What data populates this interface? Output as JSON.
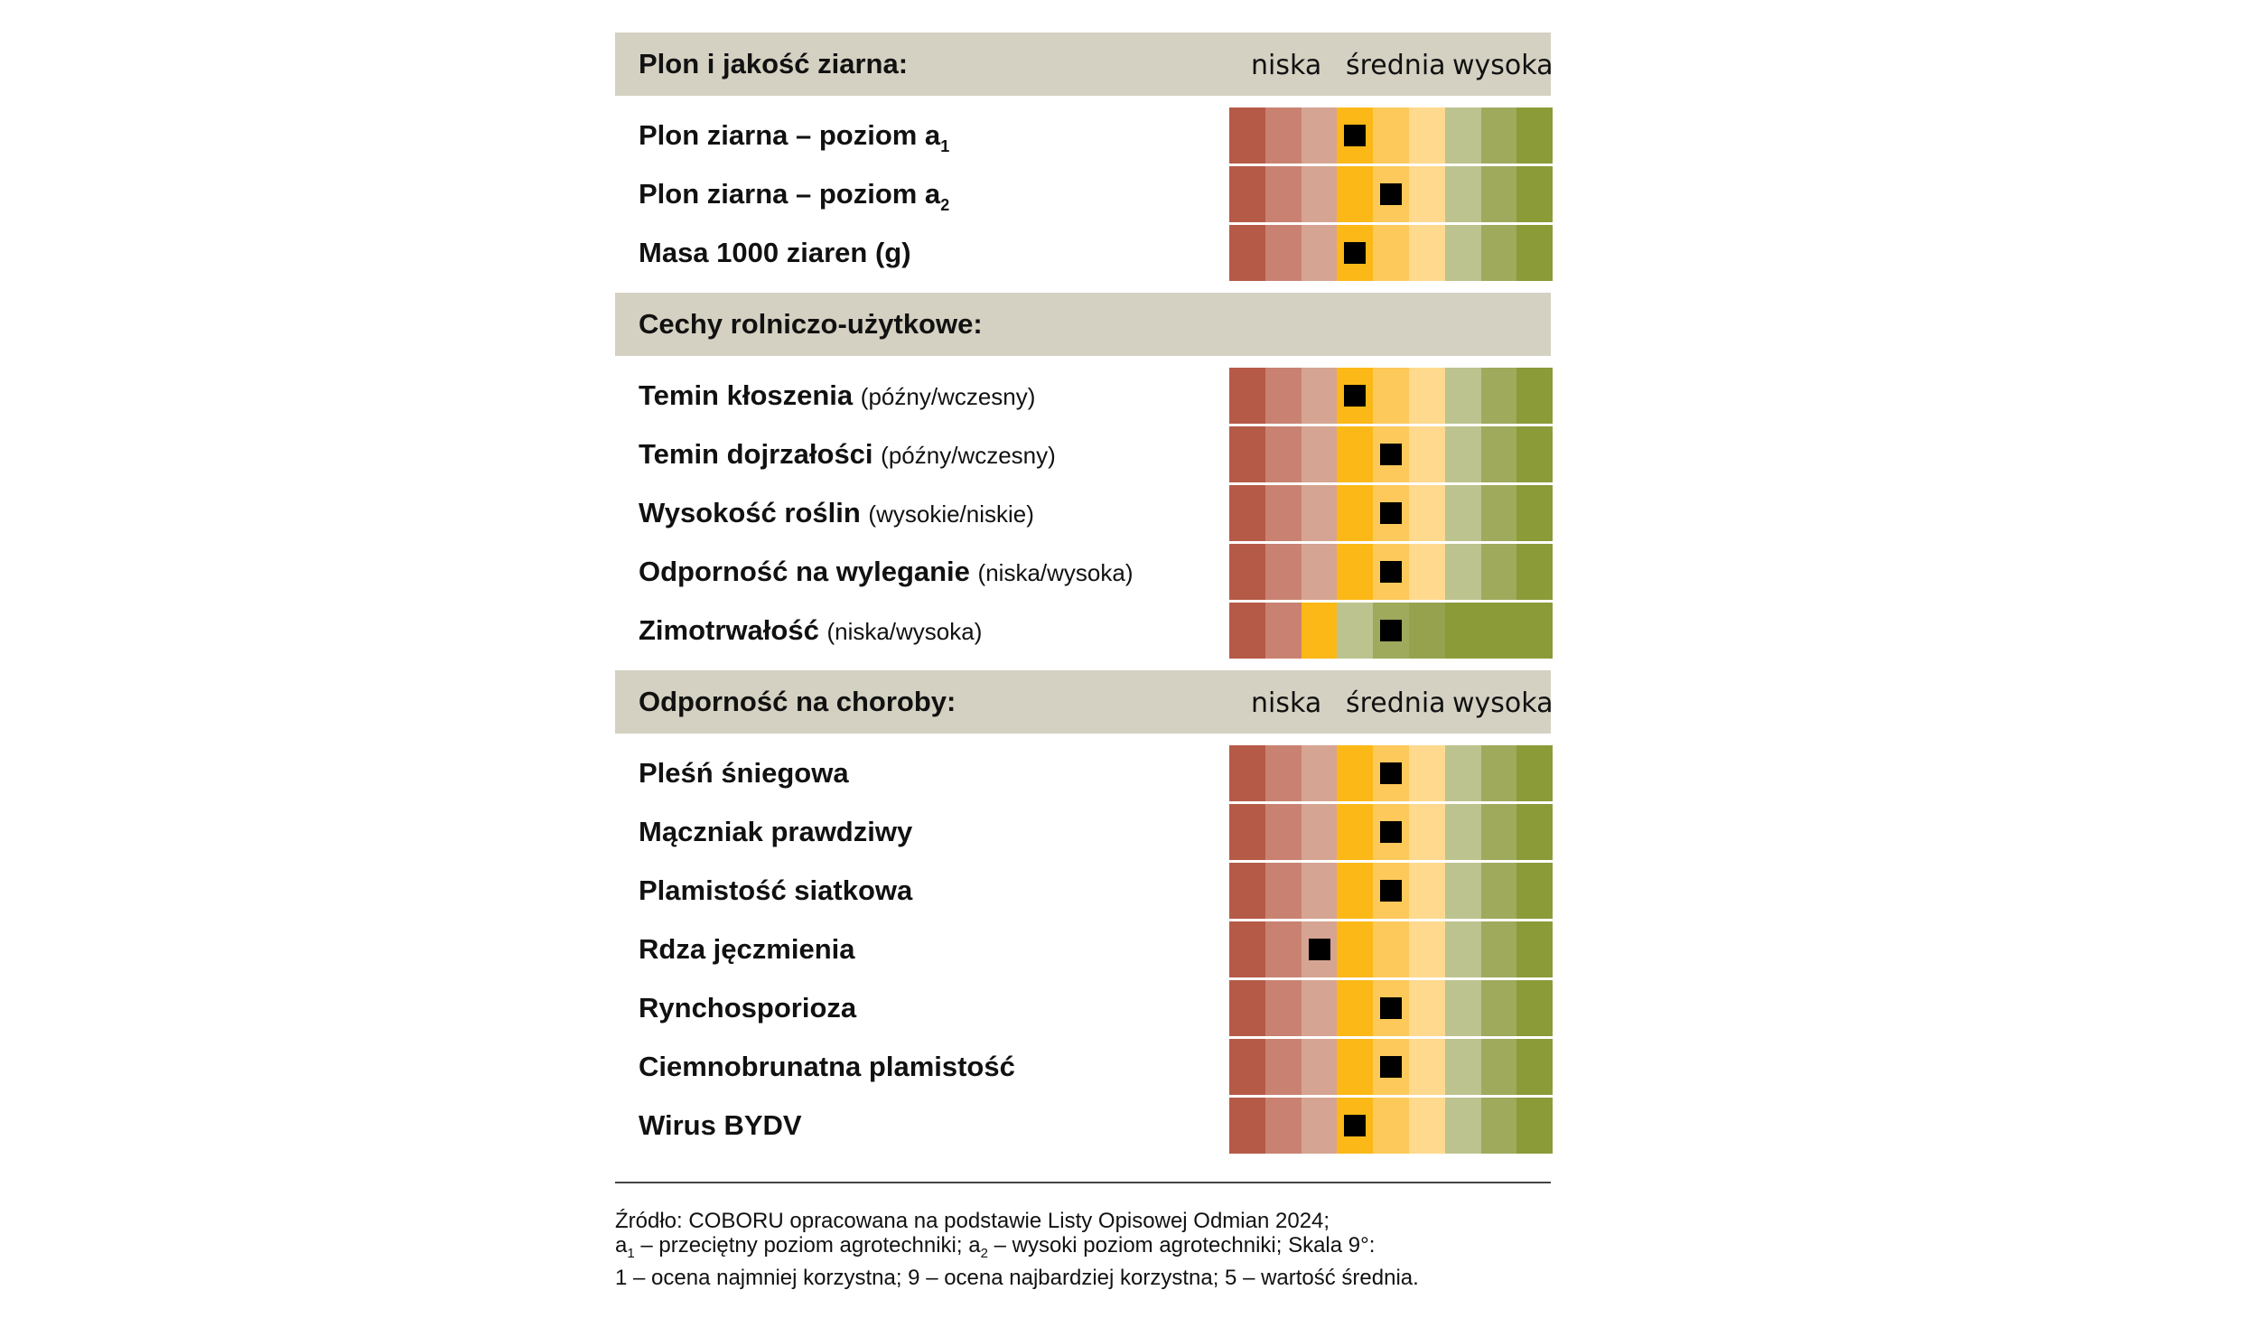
{
  "colors": {
    "header_bg": "#d4d1c2",
    "scale": [
      "#b65a48",
      "#c98271",
      "#d6a492",
      "#fbb817",
      "#fdc95a",
      "#fed98e",
      "#bcc38f",
      "#9faa5c",
      "#8a9b38"
    ],
    "marker": "#000000"
  },
  "scale_labels": {
    "low": "niska",
    "mid": "średnia",
    "high": "wysoka"
  },
  "sections": [
    {
      "title": "Plon i jakość ziarna:",
      "show_scale": true,
      "rows": [
        {
          "label": "Plon ziarna – poziom a",
          "sub": "1",
          "note": "",
          "value": 4
        },
        {
          "label": "Plon ziarna – poziom a",
          "sub": "2",
          "note": "",
          "value": 5
        },
        {
          "label": "Masa 1000 ziaren (g)",
          "sub": "",
          "note": "",
          "value": 4
        }
      ]
    },
    {
      "title": "Cechy rolniczo-użytkowe:",
      "show_scale": false,
      "rows": [
        {
          "label": "Temin kłoszenia",
          "sub": "",
          "note": "(późny/wczesny)",
          "value": 4
        },
        {
          "label": "Temin dojrzałości",
          "sub": "",
          "note": "(późny/wczesny)",
          "value": 5
        },
        {
          "label": "Wysokość roślin",
          "sub": "",
          "note": "(wysokie/niskie)",
          "value": 5
        },
        {
          "label": "Odporność na wyleganie",
          "sub": "",
          "note": "(niska/wysoka)",
          "value": 5
        },
        {
          "label": "Zimotrwałość",
          "sub": "",
          "note": "(niska/wysoka)",
          "value": 5,
          "short_scale": true
        }
      ]
    },
    {
      "title": "Odporność na choroby:",
      "show_scale": true,
      "rows": [
        {
          "label": "Pleśń śniegowa",
          "sub": "",
          "note": "",
          "value": 5
        },
        {
          "label": "Mączniak prawdziwy",
          "sub": "",
          "note": "",
          "value": 5
        },
        {
          "label": "Plamistość siatkowa",
          "sub": "",
          "note": "",
          "value": 5
        },
        {
          "label": "Rdza jęczmienia",
          "sub": "",
          "note": "",
          "value": 3
        },
        {
          "label": "Rynchosporioza",
          "sub": "",
          "note": "",
          "value": 5
        },
        {
          "label": "Ciemnobrunatna plamistość",
          "sub": "",
          "note": "",
          "value": 5
        },
        {
          "label": "Wirus BYDV",
          "sub": "",
          "note": "",
          "value": 4
        }
      ]
    }
  ],
  "footnote": {
    "line1": "Źródło: COBORU opracowana na podstawie Listy Opisowej Odmian 2024;",
    "l2_a": "a",
    "l2_sub1": "1",
    "l2_b": " – przeciętny poziom agrotechniki; a",
    "l2_sub2": "2",
    "l2_c": " – wysoki poziom agrotechniki; Skala 9°:",
    "line3": "1 – ocena najmniej korzystna; 9 – ocena najbardziej korzystna; 5 – wartość średnia."
  }
}
